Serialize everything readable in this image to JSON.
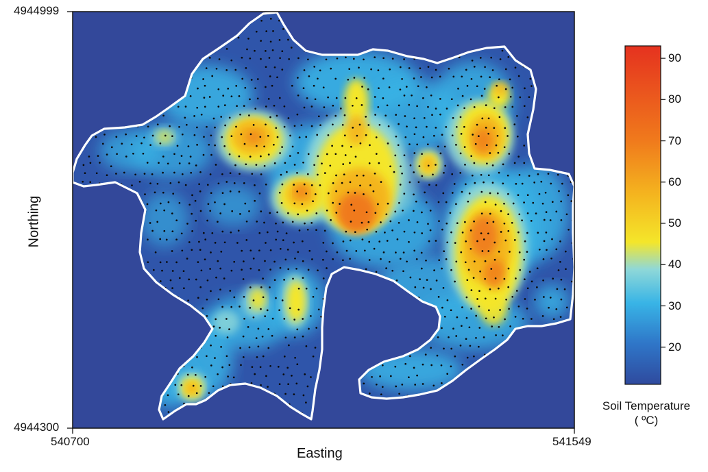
{
  "map": {
    "x_axis": {
      "title": "Easting",
      "min_label": "540700",
      "max_label": "541549",
      "range": [
        540700,
        541549
      ]
    },
    "y_axis": {
      "title": "Northing",
      "min_label": "4944300",
      "max_label": "4944999",
      "range": [
        4944300,
        4944999
      ]
    }
  },
  "colorbar": {
    "title_line1": "Soil Temperature",
    "title_line2": "( ºC)",
    "ticks": [
      "20",
      "30",
      "40",
      "50",
      "60",
      "70",
      "80",
      "90"
    ],
    "range": [
      11,
      93
    ],
    "colors": [
      "#2f4a9e",
      "#2f76c8",
      "#38b4e6",
      "#8fd8d8",
      "#f4e62a",
      "#f4b51f",
      "#f07a1c",
      "#e5321f"
    ]
  },
  "colors": {
    "background": "#33489a",
    "boundary": "#ffffff",
    "sample_points": "#0a0a0a"
  }
}
